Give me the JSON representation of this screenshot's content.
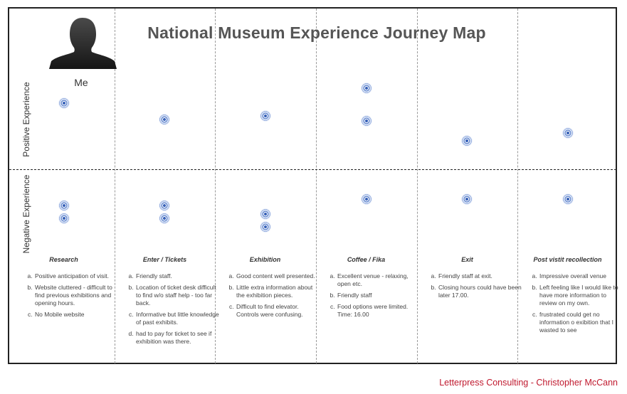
{
  "title": "National Museum Experience Journey Map",
  "persona": {
    "label": "Me"
  },
  "axes": {
    "positive": "Positive Experience",
    "negative": "Negative Experience"
  },
  "stages": [
    {
      "name": "Research",
      "positive_scores": [
        0.77
      ],
      "negative_scores": [
        0.32,
        0.57
      ],
      "notes": [
        "Positive anticipation of visit.",
        "Website cluttered - difficult to find previous exhibitions and opening hours.",
        "No Mobile website"
      ]
    },
    {
      "name": "Enter / Tickets",
      "positive_scores": [
        0.52
      ],
      "negative_scores": [
        0.32,
        0.57
      ],
      "notes": [
        "Friendly staff.",
        "Location of ticket desk difficult to find w/o staff help - too far back.",
        "Informative but little knowledge of past exhibits.",
        "had to pay for ticket to see if exhibition was there."
      ]
    },
    {
      "name": "Exhibition",
      "positive_scores": [
        0.58
      ],
      "negative_scores": [
        0.49,
        0.74
      ],
      "notes": [
        "Good content well presented.",
        "Little extra information about the exhibition pieces.",
        "Difficult to find elevator. Controls were confusing."
      ]
    },
    {
      "name": "Coffee / Fika",
      "positive_scores": [
        1.0,
        0.5
      ],
      "negative_scores": [
        0.2
      ],
      "notes": [
        "Excellent venue - relaxing, open etc.",
        "Friendly staff",
        "Food options were limited. Time: 16.00"
      ]
    },
    {
      "name": "Exit",
      "positive_scores": [
        0.2
      ],
      "negative_scores": [
        0.2
      ],
      "notes": [
        "Friendly staff at exit.",
        "Closing hours could have been later 17.00."
      ]
    },
    {
      "name": "Post vistit recollection",
      "positive_scores": [
        0.32
      ],
      "negative_scores": [
        0.2
      ],
      "notes": [
        "Impressive overall venue",
        "Left feeling like I would like to have more information to review on my own.",
        "frustrated could get no information o exibition that I wasted to see"
      ]
    }
  ],
  "footer": {
    "credit": "Letterpress Consulting - Christopher McCann"
  }
}
